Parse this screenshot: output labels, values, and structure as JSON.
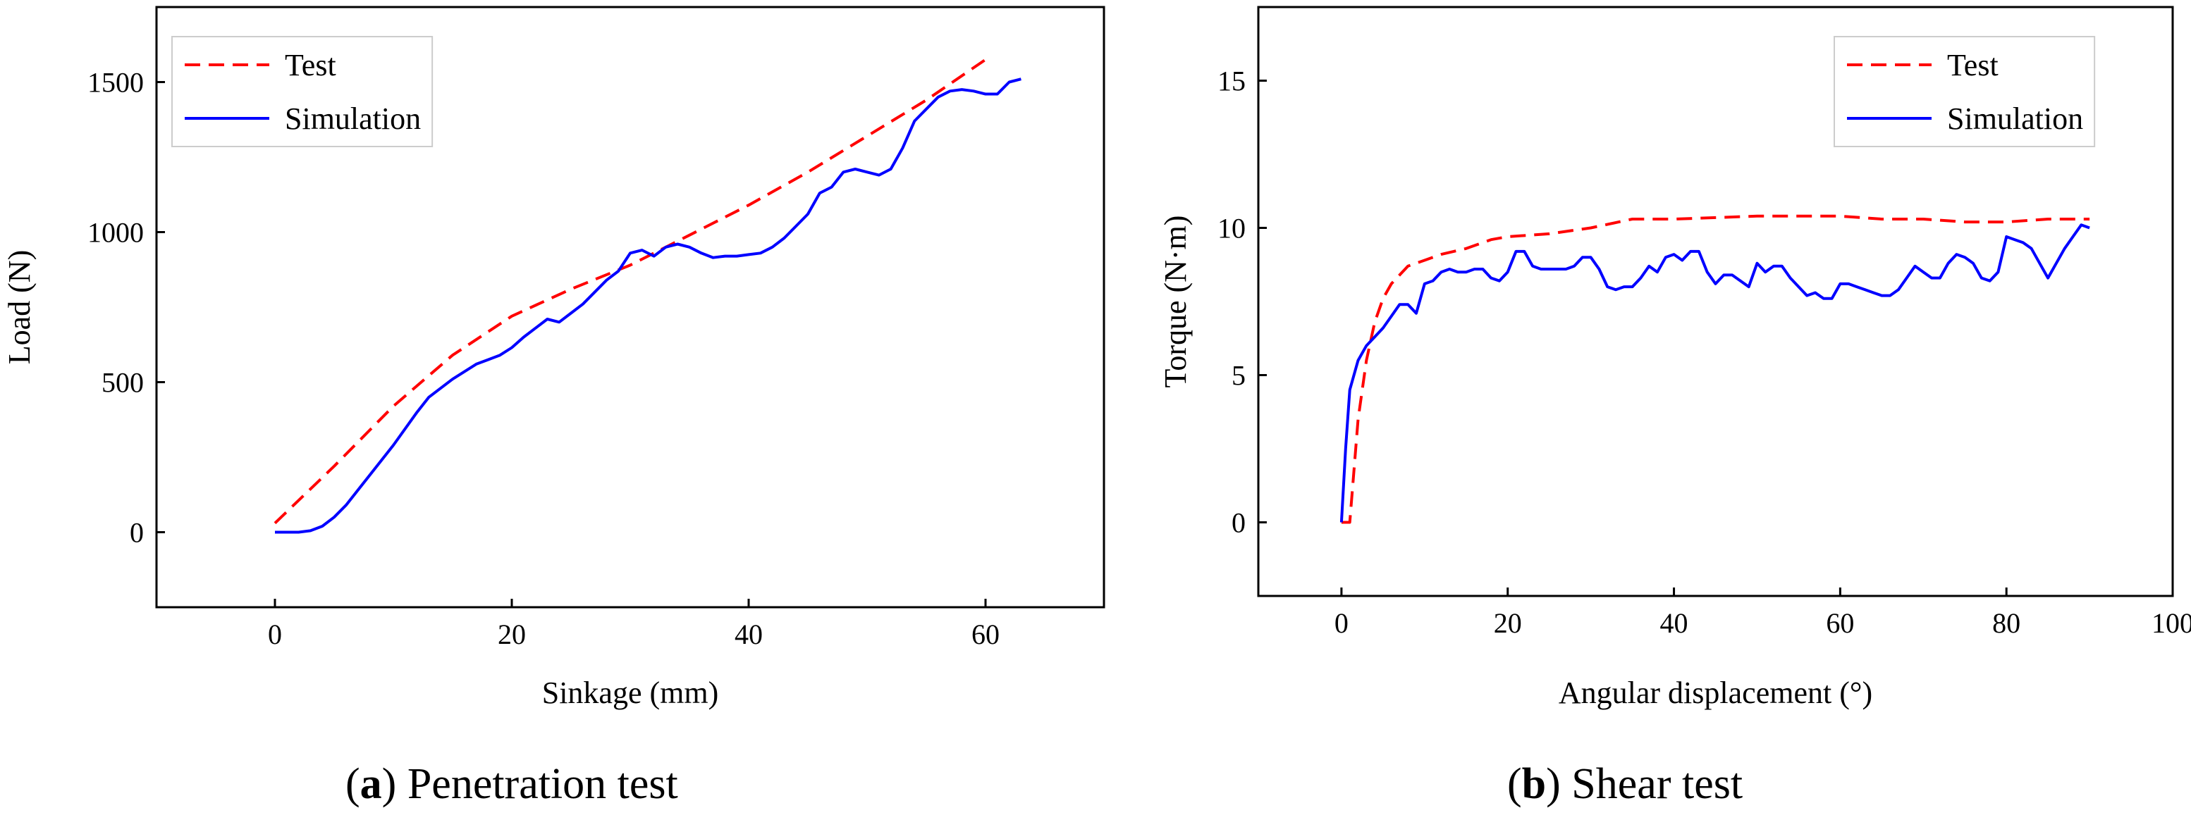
{
  "colors": {
    "test": "#ff0000",
    "simulation": "#0000ff",
    "axis": "#000000"
  },
  "captions": [
    {
      "letter": "a",
      "text": " Penetration test",
      "open": "(",
      "close": ")"
    },
    {
      "letter": "b",
      "text": " Shear test",
      "open": "(",
      "close": ")"
    }
  ],
  "chart_data": [
    {
      "type": "line",
      "title": "Penetration test",
      "xlabel": "Sinkage (mm)",
      "ylabel": "Load (N)",
      "xlim": [
        -10,
        70
      ],
      "ylim": [
        -250,
        1750
      ],
      "xticks": [
        0,
        20,
        40,
        60
      ],
      "yticks": [
        0,
        500,
        1000,
        1500
      ],
      "legend": "top-left",
      "series": [
        {
          "name": "Test",
          "style": "dashed",
          "x": [
            0,
            5,
            10,
            15,
            20,
            25,
            30,
            35,
            40,
            45,
            50,
            55,
            60
          ],
          "y": [
            30,
            220,
            420,
            590,
            720,
            810,
            890,
            990,
            1090,
            1200,
            1320,
            1440,
            1575
          ]
        },
        {
          "name": "Simulation",
          "style": "solid",
          "x": [
            0,
            2,
            3,
            4,
            5,
            6,
            8,
            10,
            12,
            13,
            15,
            17,
            18,
            19,
            20,
            21,
            22,
            23,
            24,
            25,
            26,
            27,
            28,
            29,
            30,
            31,
            32,
            33,
            34,
            35,
            36,
            37,
            38,
            39,
            40,
            41,
            42,
            43,
            44,
            45,
            46,
            47,
            48,
            49,
            50,
            51,
            52,
            53,
            54,
            55,
            56,
            57,
            58,
            59,
            60,
            61,
            62,
            63
          ],
          "y": [
            0,
            0,
            5,
            20,
            50,
            90,
            190,
            290,
            400,
            450,
            510,
            560,
            575,
            590,
            615,
            650,
            680,
            710,
            700,
            730,
            760,
            800,
            840,
            870,
            930,
            940,
            920,
            950,
            960,
            950,
            930,
            915,
            920,
            920,
            925,
            930,
            950,
            980,
            1020,
            1060,
            1130,
            1150,
            1200,
            1210,
            1200,
            1190,
            1210,
            1280,
            1370,
            1410,
            1450,
            1470,
            1475,
            1470,
            1460,
            1460,
            1500,
            1510
          ]
        }
      ]
    },
    {
      "type": "line",
      "title": "Shear test",
      "xlabel": "Angular displacement (°)",
      "ylabel": "Torque (N·m)",
      "xlim": [
        -10,
        100
      ],
      "ylim": [
        -2.5,
        17.5
      ],
      "xticks": [
        0,
        20,
        40,
        60,
        80,
        100
      ],
      "yticks": [
        0,
        5,
        10,
        15
      ],
      "legend": "top-right",
      "series": [
        {
          "name": "Test",
          "style": "dashed",
          "x": [
            0,
            1,
            2,
            3,
            4,
            5,
            6,
            7,
            8,
            10,
            12,
            15,
            18,
            20,
            25,
            30,
            35,
            40,
            50,
            60,
            65,
            70,
            75,
            80,
            85,
            90
          ],
          "y": [
            0,
            0,
            3.5,
            5.5,
            6.8,
            7.6,
            8.1,
            8.4,
            8.7,
            8.9,
            9.1,
            9.3,
            9.6,
            9.7,
            9.8,
            10.0,
            10.3,
            10.3,
            10.4,
            10.4,
            10.3,
            10.3,
            10.2,
            10.2,
            10.3,
            10.3
          ]
        },
        {
          "name": "Simulation",
          "style": "solid",
          "x": [
            0,
            0.5,
            1,
            2,
            3,
            4,
            5,
            6,
            7,
            8,
            9,
            10,
            11,
            12,
            13,
            14,
            15,
            16,
            17,
            18,
            19,
            20,
            21,
            22,
            23,
            24,
            25,
            26,
            27,
            28,
            29,
            30,
            31,
            32,
            33,
            34,
            35,
            36,
            37,
            38,
            39,
            40,
            41,
            42,
            43,
            44,
            45,
            46,
            47,
            48,
            49,
            50,
            51,
            52,
            53,
            54,
            55,
            56,
            57,
            58,
            59,
            60,
            61,
            62,
            63,
            64,
            65,
            66,
            67,
            68,
            69,
            70,
            71,
            72,
            73,
            74,
            75,
            76,
            77,
            78,
            79,
            80,
            81,
            82,
            83,
            84,
            85,
            86,
            87,
            88,
            89,
            90
          ],
          "y": [
            0,
            2.5,
            4.5,
            5.5,
            6.0,
            6.3,
            6.6,
            7.0,
            7.4,
            7.4,
            7.1,
            8.1,
            8.2,
            8.5,
            8.6,
            8.5,
            8.5,
            8.6,
            8.6,
            8.3,
            8.2,
            8.5,
            9.2,
            9.2,
            8.7,
            8.6,
            8.6,
            8.6,
            8.6,
            8.7,
            9.0,
            9.0,
            8.6,
            8.0,
            7.9,
            8.0,
            8.0,
            8.3,
            8.7,
            8.5,
            9.0,
            9.1,
            8.9,
            9.2,
            9.2,
            8.5,
            8.1,
            8.4,
            8.4,
            8.2,
            8.0,
            8.8,
            8.5,
            8.7,
            8.7,
            8.3,
            8.0,
            7.7,
            7.8,
            7.6,
            7.6,
            8.1,
            8.1,
            8.0,
            7.9,
            7.8,
            7.7,
            7.7,
            7.9,
            8.3,
            8.7,
            8.5,
            8.3,
            8.3,
            8.8,
            9.1,
            9.0,
            8.8,
            8.3,
            8.2,
            8.5,
            9.7,
            9.6,
            9.5,
            9.3,
            8.8,
            8.3,
            8.8,
            9.3,
            9.7,
            10.1,
            10.0
          ]
        }
      ]
    }
  ]
}
